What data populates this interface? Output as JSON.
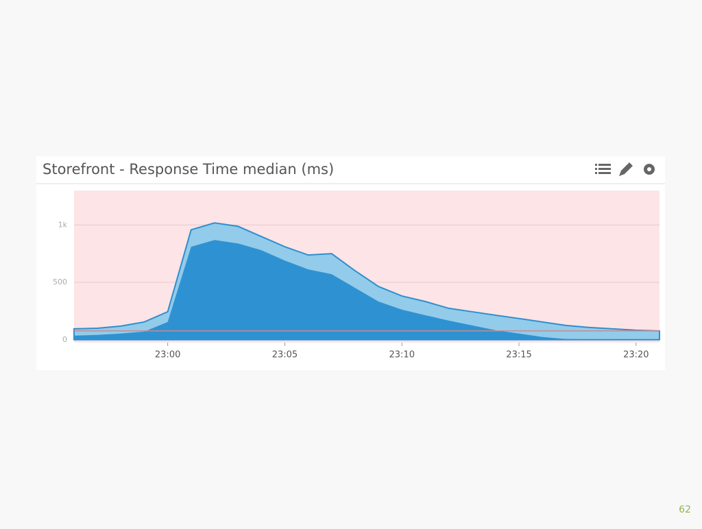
{
  "page_number": "62",
  "chart_data": {
    "type": "area",
    "title": "Storefront - Response Time median (ms)",
    "x": [
      "22:56",
      "22:57",
      "22:58",
      "22:59",
      "23:00",
      "23:01",
      "23:02",
      "23:03",
      "23:04",
      "23:05",
      "23:06",
      "23:07",
      "23:08",
      "23:09",
      "23:10",
      "23:11",
      "23:12",
      "23:13",
      "23:14",
      "23:15",
      "23:16",
      "23:17",
      "23:18",
      "23:19",
      "23:20",
      "23:21"
    ],
    "series": [
      {
        "color": "#93cbea",
        "values": [
          95,
          100,
          119,
          155,
          244,
          958,
          1018,
          988,
          899,
          810,
          738,
          750,
          601,
          464,
          381,
          333,
          274,
          244,
          214,
          185,
          155,
          125,
          107,
          95,
          83,
          77
        ]
      },
      {
        "color": "#2e92d2",
        "values": [
          36,
          42,
          54,
          71,
          155,
          810,
          869,
          839,
          780,
          690,
          613,
          571,
          452,
          333,
          262,
          214,
          167,
          125,
          83,
          54,
          24,
          6,
          3,
          2,
          1,
          1
        ]
      }
    ],
    "xlim": [
      "22:56",
      "23:21"
    ],
    "xticks": [
      "23:00",
      "23:05",
      "23:10",
      "23:15",
      "23:20"
    ],
    "ylim": [
      -25,
      1300
    ],
    "yticks": [
      0,
      500,
      {
        "value": 1000,
        "label": "1k"
      }
    ],
    "threshold": 77,
    "grid": true
  }
}
